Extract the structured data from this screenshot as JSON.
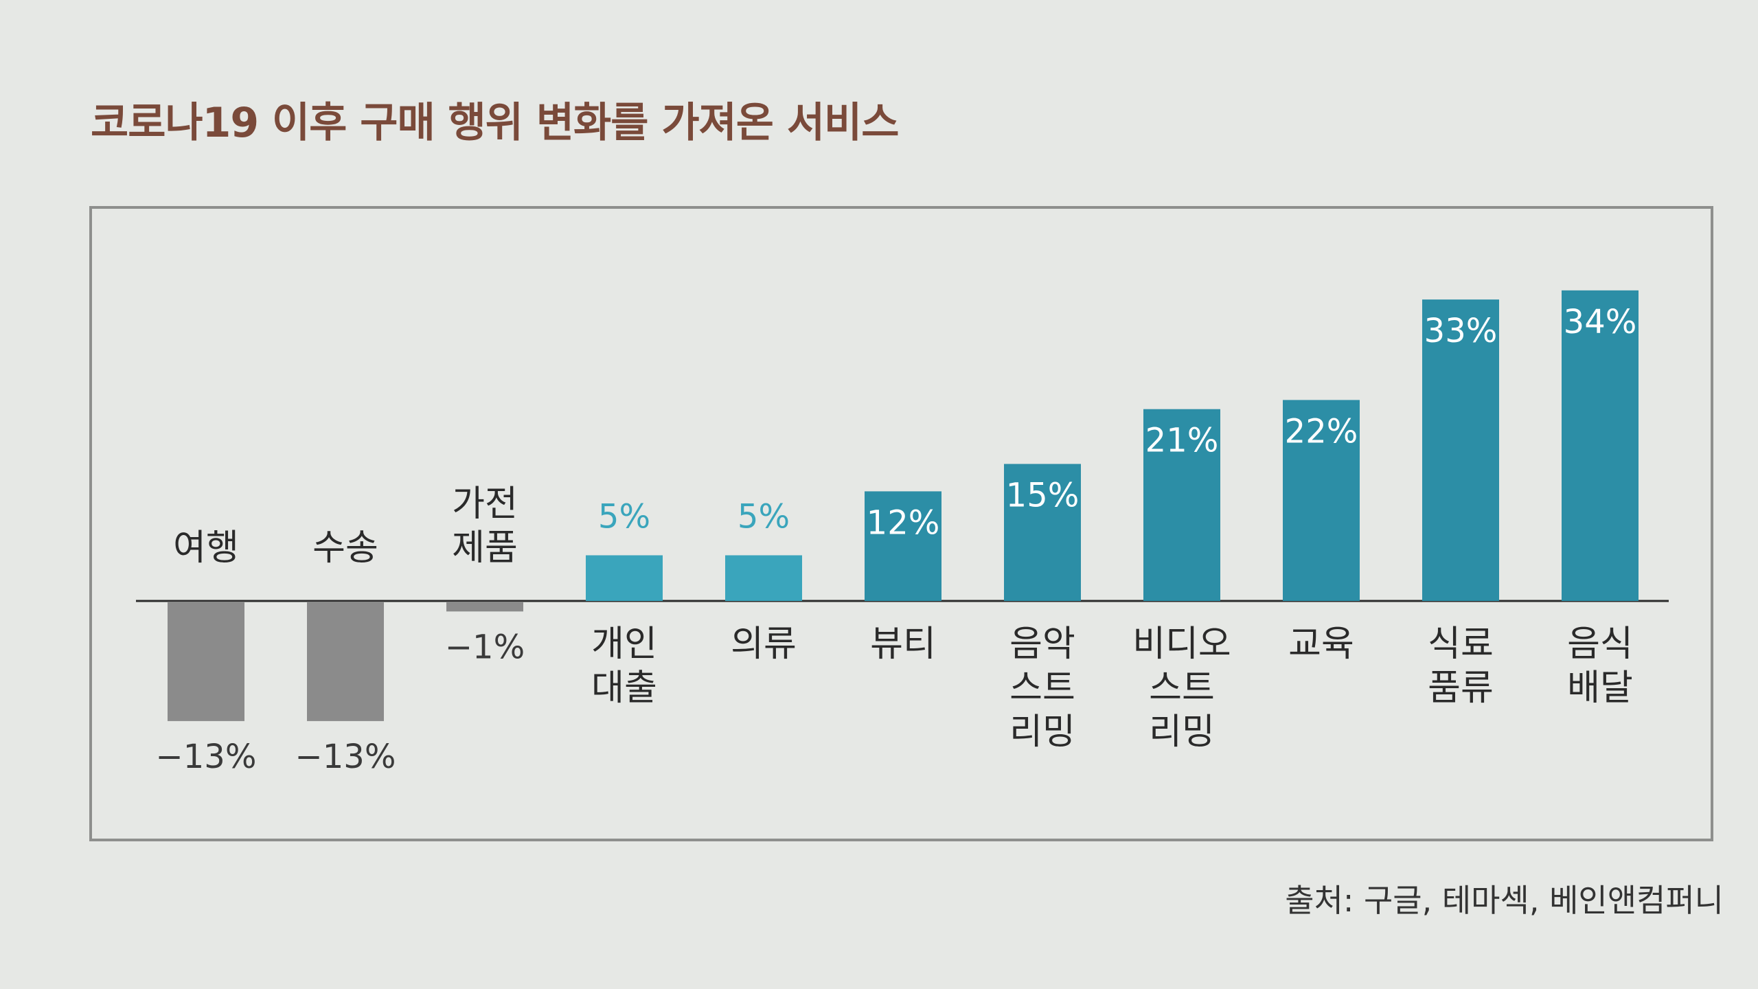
{
  "title": "코로나19 이후 구매 행위 변화를 가져온 서비스",
  "source": "출처: 구글, 테마섹, 베인앤컴퍼니",
  "colors": {
    "negative": "#8b8b8b",
    "light": "#3aa5bc",
    "dark": "#2c8ea6",
    "title": "#7a4a3a"
  },
  "chart_data": {
    "type": "bar",
    "title": "코로나19 이후 구매 행위 변화를 가져온 서비스",
    "categories": [
      [
        "여행"
      ],
      [
        "수송"
      ],
      [
        "가전",
        "제품"
      ],
      [
        "개인",
        "대출"
      ],
      [
        "의류"
      ],
      [
        "뷰티"
      ],
      [
        "음악",
        "스트",
        "리밍"
      ],
      [
        "비디오",
        "스트",
        "리밍"
      ],
      [
        "교육"
      ],
      [
        "식료",
        "품류"
      ],
      [
        "음식",
        "배달"
      ]
    ],
    "values": [
      -13,
      -13,
      -1,
      5,
      5,
      12,
      15,
      21,
      22,
      33,
      34
    ],
    "value_labels": [
      "−13%",
      "−13%",
      "−1%",
      "5%",
      "5%",
      "12%",
      "15%",
      "21%",
      "22%",
      "33%",
      "34%"
    ],
    "bar_colors": [
      "negative",
      "negative",
      "negative",
      "light",
      "light",
      "dark",
      "dark",
      "dark",
      "dark",
      "dark",
      "dark"
    ],
    "ylim": [
      -13,
      34
    ],
    "grid": false,
    "legend": false
  }
}
